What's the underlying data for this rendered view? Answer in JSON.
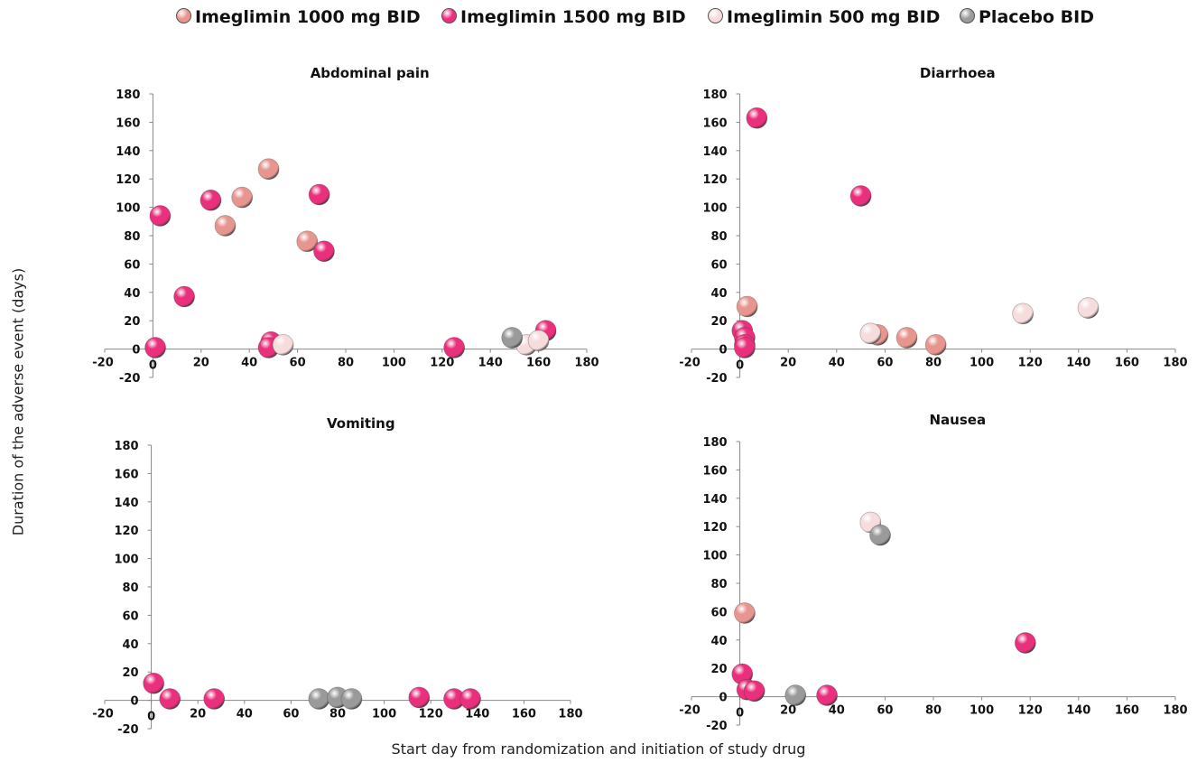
{
  "legend": [
    {
      "label": "Imeglimin 1000 mg BID",
      "color": "#e7958f"
    },
    {
      "label": "Imeglimin 1500 mg BID",
      "color": "#ea2f7d"
    },
    {
      "label": "Imeglimin 500 mg BID",
      "color": "#f6dcdc"
    },
    {
      "label": "Placebo BID",
      "color": "#9a9a9a"
    }
  ],
  "ylabel": "Duration of the adverse event (days)",
  "xlabel": "Start day from randomization and initiation of study drug",
  "chart_data": [
    {
      "type": "scatter",
      "title": "Abdominal pain",
      "xlim": [
        -20,
        180
      ],
      "ylim": [
        -20,
        180
      ],
      "xticks": [
        "-20",
        "0",
        "20",
        "40",
        "60",
        "80",
        "100",
        "120",
        "140",
        "160",
        "180"
      ],
      "yticks": [
        "-20",
        "0",
        "20",
        "40",
        "60",
        "80",
        "100",
        "120",
        "140",
        "160",
        "180"
      ],
      "series": [
        {
          "name": "Imeglimin 1000 mg BID",
          "x": [
            48,
            37,
            30,
            64
          ],
          "y": [
            127,
            107,
            87,
            76
          ]
        },
        {
          "name": "Imeglimin 1500 mg BID",
          "x": [
            3,
            13,
            24,
            69,
            71,
            49,
            48,
            1,
            125,
            163
          ],
          "y": [
            94,
            37,
            105,
            109,
            69,
            5,
            1,
            1,
            1,
            13
          ]
        },
        {
          "name": "Imeglimin 500 mg BID",
          "x": [
            54,
            155,
            160
          ],
          "y": [
            3,
            3,
            6
          ]
        },
        {
          "name": "Placebo BID",
          "x": [
            149
          ],
          "y": [
            8
          ]
        }
      ]
    },
    {
      "type": "scatter",
      "title": "Diarrhoea",
      "xlim": [
        -20,
        180
      ],
      "ylim": [
        -20,
        180
      ],
      "xticks": [
        "-20",
        "0",
        "20",
        "40",
        "60",
        "80",
        "100",
        "120",
        "140",
        "160",
        "180"
      ],
      "yticks": [
        "-20",
        "0",
        "20",
        "40",
        "60",
        "80",
        "100",
        "120",
        "140",
        "160",
        "180"
      ],
      "series": [
        {
          "name": "Imeglimin 1000 mg BID",
          "x": [
            3,
            57,
            69,
            81
          ],
          "y": [
            30,
            10,
            8,
            3
          ]
        },
        {
          "name": "Imeglimin 1500 mg BID",
          "x": [
            7,
            50,
            1,
            2,
            2,
            2
          ],
          "y": [
            163,
            108,
            13,
            8,
            3,
            1
          ]
        },
        {
          "name": "Imeglimin 500 mg BID",
          "x": [
            54,
            117,
            144
          ],
          "y": [
            11,
            25,
            29
          ]
        },
        {
          "name": "Placebo BID",
          "x": [],
          "y": []
        }
      ]
    },
    {
      "type": "scatter",
      "title": "Vomiting",
      "xlim": [
        -20,
        180
      ],
      "ylim": [
        -20,
        180
      ],
      "xticks": [
        "-20",
        "0",
        "20",
        "40",
        "60",
        "80",
        "100",
        "120",
        "140",
        "160",
        "180"
      ],
      "yticks": [
        "-20",
        "0",
        "20",
        "40",
        "60",
        "80",
        "100",
        "120",
        "140",
        "160",
        "180"
      ],
      "series": [
        {
          "name": "Imeglimin 1000 mg BID",
          "x": [],
          "y": []
        },
        {
          "name": "Imeglimin 1500 mg BID",
          "x": [
            1,
            8,
            27,
            115,
            130,
            137
          ],
          "y": [
            12,
            1,
            1,
            2,
            1,
            1
          ]
        },
        {
          "name": "Imeglimin 500 mg BID",
          "x": [],
          "y": []
        },
        {
          "name": "Placebo BID",
          "x": [
            72,
            80,
            86
          ],
          "y": [
            1,
            2,
            1
          ]
        }
      ]
    },
    {
      "type": "scatter",
      "title": "Nausea",
      "xlim": [
        -20,
        180
      ],
      "ylim": [
        -20,
        180
      ],
      "xticks": [
        "-20",
        "0",
        "20",
        "40",
        "60",
        "80",
        "100",
        "120",
        "140",
        "160",
        "180"
      ],
      "yticks": [
        "-20",
        "0",
        "20",
        "40",
        "60",
        "80",
        "100",
        "120",
        "140",
        "160",
        "180"
      ],
      "series": [
        {
          "name": "Imeglimin 1000 mg BID",
          "x": [
            2
          ],
          "y": [
            59
          ]
        },
        {
          "name": "Imeglimin 1500 mg BID",
          "x": [
            118,
            1,
            3,
            6,
            36
          ],
          "y": [
            38,
            16,
            5,
            4,
            1
          ]
        },
        {
          "name": "Imeglimin 500 mg BID",
          "x": [
            54
          ],
          "y": [
            123
          ]
        },
        {
          "name": "Placebo BID",
          "x": [
            58,
            23
          ],
          "y": [
            114,
            1
          ]
        }
      ]
    }
  ]
}
